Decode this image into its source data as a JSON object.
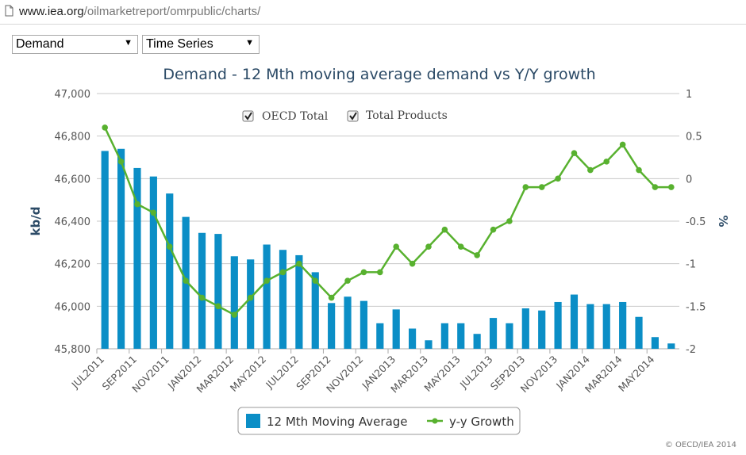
{
  "browser": {
    "url_domain": "www.iea.org",
    "url_path": "/oilmarketreport/omrpublic/charts/"
  },
  "controls": {
    "dataset_select": "Demand",
    "view_select": "Time Series",
    "checkbox_oecd": "OECD Total",
    "checkbox_products": "Total Products",
    "checkbox_oecd_checked": true,
    "checkbox_products_checked": true
  },
  "colors": {
    "bar": "#0b8ec6",
    "line": "#58b12f",
    "title": "#2b4a66",
    "grid": "#c8c8c8"
  },
  "credit": "© OECD/IEA 2014",
  "chart_data": {
    "type": "bar+line",
    "title": "Demand - 12 Mth moving average demand vs Y/Y growth",
    "ylabel": "kb/d",
    "y2label": "%",
    "ylim": [
      45800,
      47000
    ],
    "y2lim": [
      -2,
      1
    ],
    "yticks": [
      "45,800",
      "46,000",
      "46,200",
      "46,400",
      "46,600",
      "46,800",
      "47,000"
    ],
    "y2ticks": [
      "-2",
      "-1.5",
      "-1",
      "-0.5",
      "0",
      "0.5",
      "1"
    ],
    "categories": [
      "JUL2011",
      "AUG2011",
      "SEP2011",
      "OCT2011",
      "NOV2011",
      "DEC2011",
      "JAN2012",
      "FEB2012",
      "MAR2012",
      "APR2012",
      "MAY2012",
      "JUN2012",
      "JUL2012",
      "AUG2012",
      "SEP2012",
      "OCT2012",
      "NOV2012",
      "DEC2012",
      "JAN2013",
      "FEB2013",
      "MAR2013",
      "APR2013",
      "MAY2013",
      "JUN2013",
      "JUL2013",
      "AUG2013",
      "SEP2013",
      "OCT2013",
      "NOV2013",
      "DEC2013",
      "JAN2014",
      "FEB2014",
      "MAR2014",
      "APR2014",
      "MAY2014",
      "JUN2014"
    ],
    "tick_labels": [
      "JUL2011",
      "SEP2011",
      "NOV2011",
      "JAN2012",
      "MAR2012",
      "MAY2012",
      "JUL2012",
      "SEP2012",
      "NOV2012",
      "JAN2013",
      "MAR2013",
      "MAY2013",
      "JUL2013",
      "SEP2013",
      "NOV2013",
      "JAN2014",
      "MAR2014",
      "MAY2014"
    ],
    "series": [
      {
        "name": "12 Mth Moving Average",
        "type": "bar",
        "axis": "left",
        "values": [
          46730,
          46740,
          46650,
          46610,
          46530,
          46420,
          46345,
          46340,
          46235,
          46220,
          46290,
          46265,
          46240,
          46160,
          46015,
          46045,
          46025,
          45920,
          45985,
          45895,
          45840,
          45920,
          45920,
          45870,
          45945,
          45920,
          45990,
          45980,
          46020,
          46055,
          46010,
          46010,
          46020,
          45950,
          45855,
          45825
        ]
      },
      {
        "name": "y-y Growth",
        "type": "line",
        "axis": "right",
        "values": [
          0.6,
          0.2,
          -0.3,
          -0.4,
          -0.8,
          -1.2,
          -1.4,
          -1.5,
          -1.6,
          -1.4,
          -1.2,
          -1.1,
          -1.0,
          -1.2,
          -1.4,
          -1.2,
          -1.1,
          -1.1,
          -0.8,
          -1.0,
          -0.8,
          -0.6,
          -0.8,
          -0.9,
          -0.6,
          -0.5,
          -0.1,
          -0.1,
          0.0,
          0.3,
          0.1,
          0.2,
          0.4,
          0.1,
          -0.1,
          -0.1
        ]
      }
    ],
    "legend_position": "bottom-center",
    "grid": true
  }
}
